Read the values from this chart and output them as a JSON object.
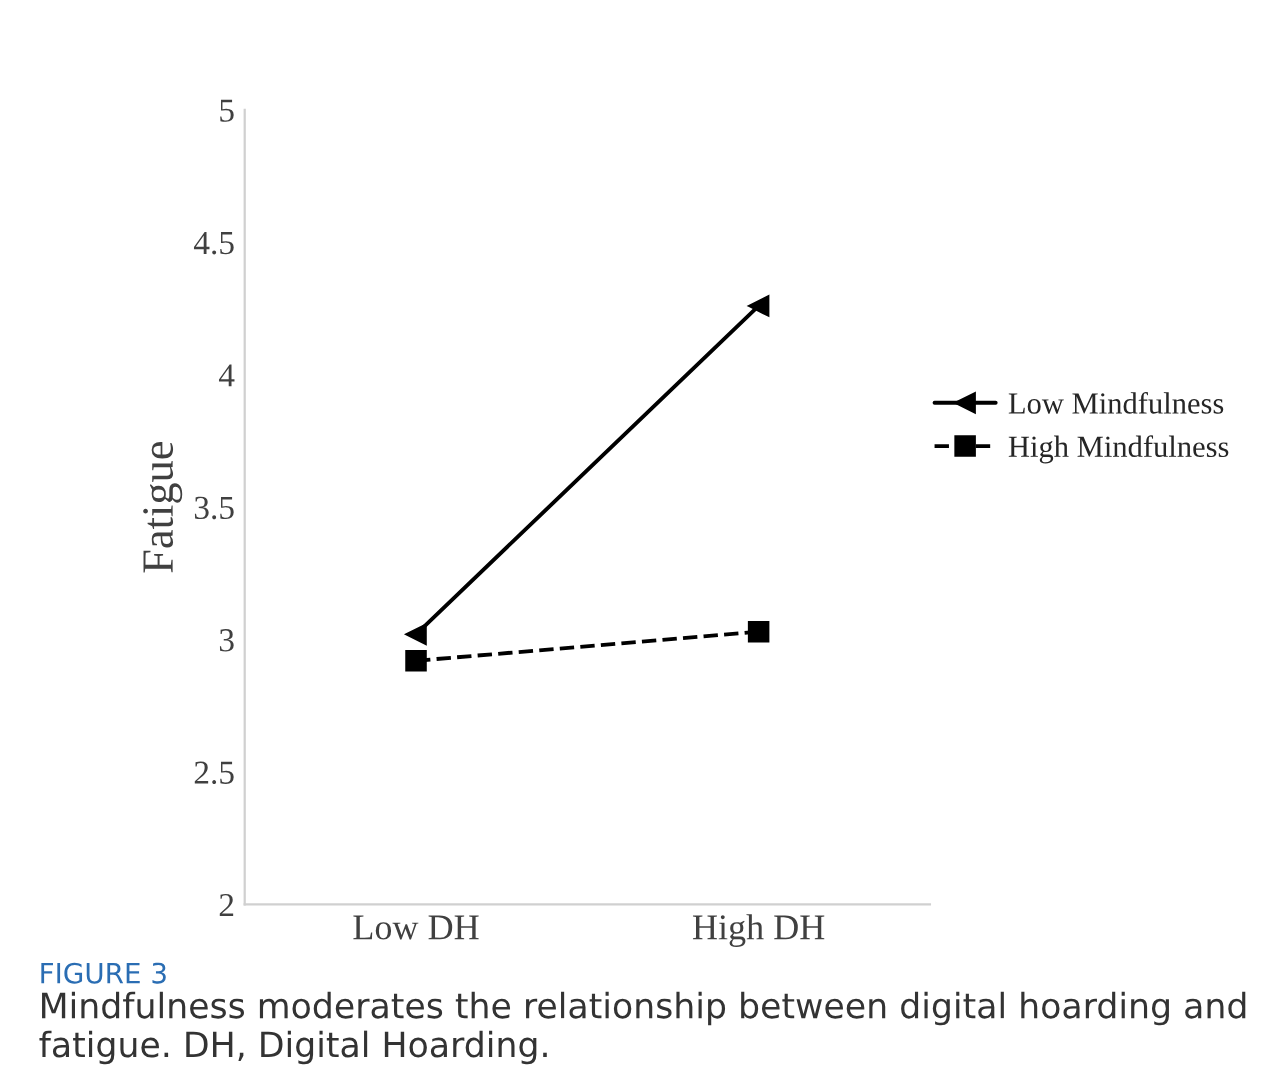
{
  "chart_data": {
    "type": "line",
    "ylabel": "Fatigue",
    "categories": [
      "Low DH",
      "High DH"
    ],
    "series": [
      {
        "name": "Low Mindfulness",
        "color": "#000000",
        "values": [
          3.02,
          4.26
        ],
        "marker": "triangle",
        "line_style": "solid"
      },
      {
        "name": "High Mindfulness",
        "color": "#000000",
        "values": [
          2.92,
          3.03
        ],
        "marker": "square",
        "line_style": "dashed"
      }
    ],
    "ylim": [
      2,
      5
    ],
    "yticks": [
      2,
      2.5,
      3,
      3.5,
      4,
      4.5,
      5
    ],
    "legend": "right",
    "annotations": [
      "FIGURE 3",
      "Mindfulness moderates the relationship between digital hoarding and fatigue. DH, Digital Hoarding."
    ]
  }
}
